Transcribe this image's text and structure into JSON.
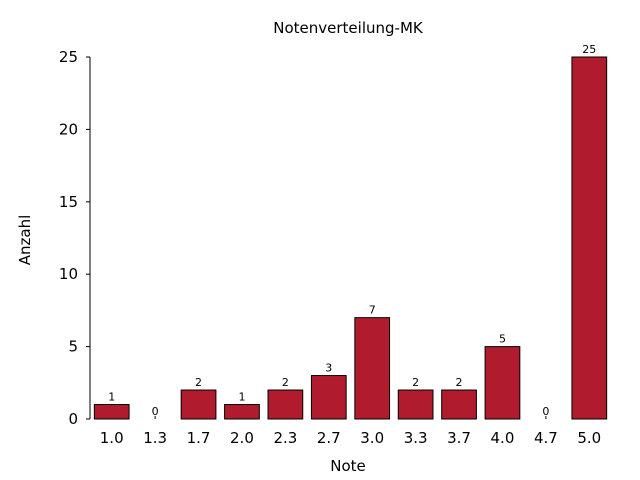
{
  "chart_data": {
    "type": "bar",
    "title": "Notenverteilung-MK",
    "xlabel": "Note",
    "ylabel": "Anzahl",
    "categories": [
      "1.0",
      "1.3",
      "1.7",
      "2.0",
      "2.3",
      "2.7",
      "3.0",
      "3.3",
      "3.7",
      "4.0",
      "4.7",
      "5.0"
    ],
    "values": [
      1,
      0,
      2,
      1,
      2,
      3,
      7,
      2,
      2,
      5,
      0,
      25
    ],
    "data_labels": [
      "1",
      "0",
      "2",
      "1",
      "2",
      "3",
      "7",
      "2",
      "2",
      "5",
      "0",
      "25"
    ],
    "ylim": [
      0,
      25
    ],
    "yticks": [
      0,
      5,
      10,
      15,
      20,
      25
    ],
    "ytick_labels": [
      "0",
      "5",
      "10",
      "15",
      "20",
      "25"
    ],
    "grid": false,
    "legend": "none",
    "bar_color": "#b01c2e"
  }
}
